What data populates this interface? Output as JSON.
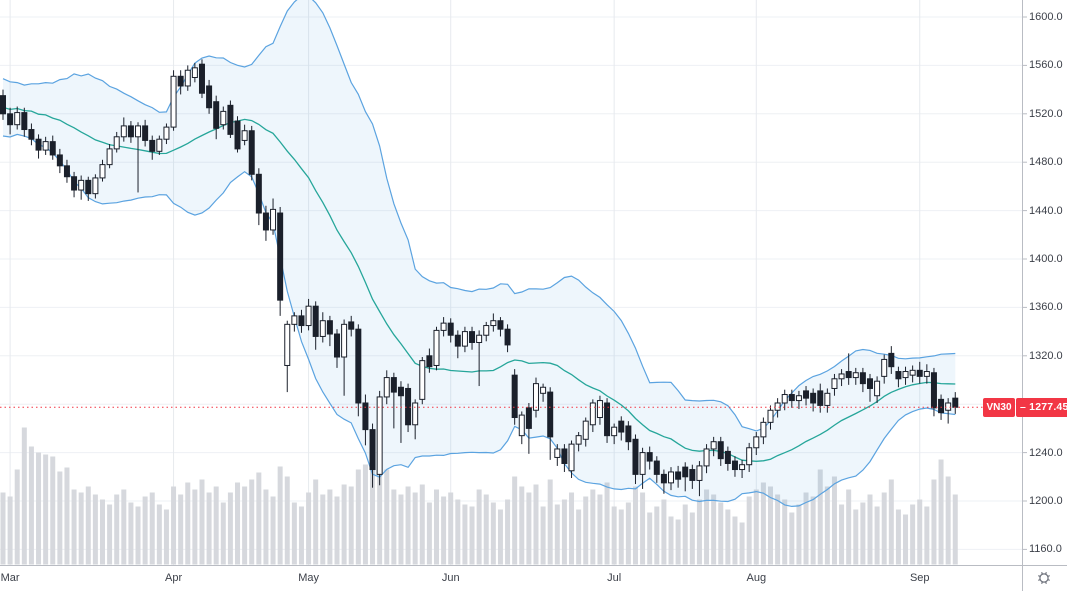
{
  "theme": {
    "background": "#ffffff",
    "grid_horizontal": "#eef0f4",
    "grid_vertical": "#e7eaee",
    "axis_border": "#b9bcc3",
    "axis_text": "#3b3f48",
    "candle_up_fill": "#ffffff",
    "candle_down_fill": "#1b202b",
    "candle_border": "#1b202b",
    "volume_bar": "#d6d8dd",
    "bollinger_band_line": "#5ba3e0",
    "bollinger_band_fill": "rgba(91,163,224,0.10)",
    "bollinger_basis_line": "#26a69a",
    "accent_red": "#f23645",
    "gear_icon_color": "#6b6f79"
  },
  "price_tag": {
    "symbol": "VN30",
    "separator": "–",
    "price": "1277.45",
    "price_text": "– 1277.45"
  },
  "price_axis": {
    "labels": [
      {
        "value": 1600,
        "label": "1600.0"
      },
      {
        "value": 1560,
        "label": "1560.0"
      },
      {
        "value": 1520,
        "label": "1520.0"
      },
      {
        "value": 1480,
        "label": "1480.0"
      },
      {
        "value": 1440,
        "label": "1440.0"
      },
      {
        "value": 1400,
        "label": "1400.0"
      },
      {
        "value": 1360,
        "label": "1360.0"
      },
      {
        "value": 1320,
        "label": "1320.0"
      },
      {
        "value": 1240,
        "label": "1240.0"
      },
      {
        "value": 1200,
        "label": "1200.0"
      },
      {
        "value": 1160,
        "label": "1160.0"
      }
    ]
  },
  "time_axis": {
    "months": [
      {
        "label": "Mar",
        "candle_index": 1
      },
      {
        "label": "Apr",
        "candle_index": 24
      },
      {
        "label": "May",
        "candle_index": 43
      },
      {
        "label": "Jun",
        "candle_index": 63
      },
      {
        "label": "Jul",
        "candle_index": 86
      },
      {
        "label": "Aug",
        "candle_index": 106
      },
      {
        "label": "Sep",
        "candle_index": 129
      }
    ]
  },
  "icons": {
    "gear": "axis-settings-gear"
  },
  "chart_data": {
    "type": "candlestick",
    "title": "VN30 daily candlesticks with Bollinger Bands (20, 2) and volume",
    "symbol": "VN30",
    "last_close": 1277.45,
    "price_axis": {
      "min": 1160,
      "max": 1600,
      "tick_step": 40,
      "grid": true
    },
    "legend_position": "none",
    "indicators": {
      "bollinger": {
        "period": 20,
        "stddev_mult": 2,
        "seed_closes": [
          1502,
          1544,
          1506,
          1542,
          1508,
          1540,
          1510,
          1538,
          1512,
          1536,
          1514,
          1536,
          1516,
          1534,
          1518,
          1532,
          1520,
          1530,
          1522,
          1528
        ]
      },
      "volume": {
        "units": "relative"
      }
    },
    "columns": [
      "open",
      "high",
      "low",
      "close",
      "volume_rel"
    ],
    "candles": [
      [
        1535,
        1540,
        1515,
        1520,
        72
      ],
      [
        1520,
        1525,
        1503,
        1511,
        68
      ],
      [
        1511,
        1526,
        1507,
        1521,
        95
      ],
      [
        1521,
        1525,
        1501,
        1507,
        137
      ],
      [
        1507,
        1512,
        1494,
        1499,
        118
      ],
      [
        1499,
        1503,
        1483,
        1490,
        112
      ],
      [
        1490,
        1501,
        1486,
        1497,
        110
      ],
      [
        1497,
        1502,
        1482,
        1486,
        108
      ],
      [
        1486,
        1491,
        1471,
        1477,
        93
      ],
      [
        1477,
        1482,
        1463,
        1468,
        97
      ],
      [
        1468,
        1472,
        1451,
        1457,
        75
      ],
      [
        1457,
        1469,
        1449,
        1465,
        72
      ],
      [
        1465,
        1468,
        1448,
        1454,
        78
      ],
      [
        1454,
        1470,
        1450,
        1467,
        70
      ],
      [
        1467,
        1482,
        1464,
        1478,
        65
      ],
      [
        1478,
        1495,
        1475,
        1491,
        60
      ],
      [
        1491,
        1505,
        1488,
        1501,
        70
      ],
      [
        1501,
        1517,
        1497,
        1510,
        75
      ],
      [
        1510,
        1514,
        1496,
        1501,
        62
      ],
      [
        1501,
        1513,
        1455,
        1510,
        58
      ],
      [
        1510,
        1515,
        1493,
        1498,
        68
      ],
      [
        1498,
        1502,
        1482,
        1489,
        72
      ],
      [
        1489,
        1502,
        1486,
        1499,
        60
      ],
      [
        1499,
        1512,
        1495,
        1509,
        55
      ],
      [
        1509,
        1556,
        1506,
        1551,
        78
      ],
      [
        1551,
        1556,
        1536,
        1543,
        70
      ],
      [
        1543,
        1560,
        1539,
        1556,
        82
      ],
      [
        1550,
        1562,
        1546,
        1558,
        75
      ],
      [
        1561,
        1565,
        1533,
        1537,
        85
      ],
      [
        1543,
        1548,
        1520,
        1525,
        72
      ],
      [
        1530,
        1535,
        1499,
        1508,
        78
      ],
      [
        1511,
        1526,
        1507,
        1522,
        62
      ],
      [
        1527,
        1531,
        1500,
        1503,
        72
      ],
      [
        1514,
        1518,
        1488,
        1491,
        82
      ],
      [
        1498,
        1511,
        1494,
        1506,
        78
      ],
      [
        1506,
        1510,
        1465,
        1470,
        85
      ],
      [
        1470,
        1475,
        1428,
        1438,
        92
      ],
      [
        1438,
        1444,
        1415,
        1424,
        75
      ],
      [
        1424,
        1450,
        1420,
        1441,
        68
      ],
      [
        1438,
        1443,
        1353,
        1366,
        98
      ],
      [
        1312,
        1349,
        1290,
        1346,
        88
      ],
      [
        1346,
        1356,
        1340,
        1353,
        62
      ],
      [
        1353,
        1358,
        1339,
        1345,
        58
      ],
      [
        1345,
        1367,
        1341,
        1361,
        72
      ],
      [
        1361,
        1365,
        1325,
        1336,
        85
      ],
      [
        1336,
        1356,
        1331,
        1349,
        70
      ],
      [
        1349,
        1353,
        1328,
        1338,
        75
      ],
      [
        1338,
        1342,
        1310,
        1319,
        68
      ],
      [
        1319,
        1350,
        1287,
        1346,
        80
      ],
      [
        1348,
        1353,
        1336,
        1342,
        78
      ],
      [
        1342,
        1346,
        1270,
        1281,
        95
      ],
      [
        1281,
        1288,
        1246,
        1259,
        100
      ],
      [
        1259,
        1264,
        1211,
        1226,
        108
      ],
      [
        1222,
        1291,
        1213,
        1286,
        112
      ],
      [
        1286,
        1308,
        1280,
        1302,
        95
      ],
      [
        1302,
        1306,
        1260,
        1290,
        75
      ],
      [
        1294,
        1299,
        1248,
        1287,
        70
      ],
      [
        1293,
        1297,
        1257,
        1263,
        78
      ],
      [
        1263,
        1284,
        1251,
        1281,
        72
      ],
      [
        1284,
        1319,
        1280,
        1316,
        80
      ],
      [
        1320,
        1326,
        1306,
        1311,
        62
      ],
      [
        1312,
        1344,
        1308,
        1341,
        75
      ],
      [
        1341,
        1352,
        1336,
        1347,
        68
      ],
      [
        1347,
        1351,
        1331,
        1337,
        72
      ],
      [
        1337,
        1341,
        1318,
        1328,
        65
      ],
      [
        1328,
        1344,
        1323,
        1340,
        60
      ],
      [
        1340,
        1344,
        1325,
        1331,
        58
      ],
      [
        1331,
        1341,
        1295,
        1337,
        75
      ],
      [
        1337,
        1348,
        1332,
        1345,
        70
      ],
      [
        1345,
        1355,
        1340,
        1349,
        62
      ],
      [
        1349,
        1352,
        1336,
        1342,
        55
      ],
      [
        1342,
        1346,
        1323,
        1329,
        65
      ],
      [
        1304,
        1309,
        1263,
        1269,
        88
      ],
      [
        1254,
        1274,
        1247,
        1271,
        78
      ],
      [
        1277,
        1281,
        1239,
        1260,
        72
      ],
      [
        1275,
        1302,
        1269,
        1297,
        80
      ],
      [
        1289,
        1297,
        1282,
        1294,
        58
      ],
      [
        1290,
        1294,
        1234,
        1253,
        85
      ],
      [
        1236,
        1247,
        1229,
        1243,
        60
      ],
      [
        1243,
        1247,
        1224,
        1231,
        65
      ],
      [
        1225,
        1250,
        1219,
        1247,
        72
      ],
      [
        1247,
        1257,
        1241,
        1254,
        55
      ],
      [
        1251,
        1269,
        1245,
        1266,
        68
      ],
      [
        1263,
        1284,
        1257,
        1281,
        75
      ],
      [
        1269,
        1287,
        1263,
        1283,
        70
      ],
      [
        1281,
        1285,
        1248,
        1254,
        82
      ],
      [
        1254,
        1264,
        1247,
        1261,
        58
      ],
      [
        1266,
        1270,
        1250,
        1257,
        55
      ],
      [
        1262,
        1266,
        1242,
        1249,
        62
      ],
      [
        1251,
        1255,
        1214,
        1222,
        78
      ],
      [
        1222,
        1244,
        1210,
        1240,
        72
      ],
      [
        1240,
        1245,
        1226,
        1233,
        52
      ],
      [
        1233,
        1237,
        1215,
        1222,
        58
      ],
      [
        1222,
        1226,
        1206,
        1215,
        65
      ],
      [
        1215,
        1228,
        1209,
        1224,
        48
      ],
      [
        1224,
        1229,
        1211,
        1218,
        45
      ],
      [
        1228,
        1232,
        1208,
        1220,
        60
      ],
      [
        1226,
        1230,
        1210,
        1217,
        52
      ],
      [
        1217,
        1233,
        1204,
        1229,
        65
      ],
      [
        1229,
        1247,
        1223,
        1243,
        75
      ],
      [
        1243,
        1253,
        1237,
        1249,
        70
      ],
      [
        1249,
        1253,
        1229,
        1235,
        62
      ],
      [
        1241,
        1245,
        1225,
        1231,
        55
      ],
      [
        1233,
        1237,
        1220,
        1226,
        48
      ],
      [
        1226,
        1234,
        1219,
        1230,
        42
      ],
      [
        1230,
        1248,
        1224,
        1244,
        68
      ],
      [
        1244,
        1257,
        1238,
        1253,
        75
      ],
      [
        1253,
        1269,
        1247,
        1265,
        82
      ],
      [
        1265,
        1279,
        1259,
        1275,
        78
      ],
      [
        1275,
        1285,
        1269,
        1281,
        70
      ],
      [
        1281,
        1292,
        1275,
        1288,
        65
      ],
      [
        1288,
        1292,
        1277,
        1283,
        52
      ],
      [
        1283,
        1291,
        1276,
        1287,
        60
      ],
      [
        1291,
        1295,
        1279,
        1285,
        72
      ],
      [
        1289,
        1293,
        1274,
        1281,
        68
      ],
      [
        1291,
        1297,
        1273,
        1279,
        95
      ],
      [
        1279,
        1293,
        1273,
        1289,
        78
      ],
      [
        1293,
        1305,
        1287,
        1301,
        88
      ],
      [
        1301,
        1309,
        1295,
        1305,
        60
      ],
      [
        1307,
        1322,
        1296,
        1302,
        75
      ],
      [
        1302,
        1310,
        1296,
        1306,
        55
      ],
      [
        1306,
        1310,
        1290,
        1297,
        62
      ],
      [
        1301,
        1305,
        1282,
        1293,
        70
      ],
      [
        1287,
        1303,
        1281,
        1299,
        58
      ],
      [
        1303,
        1321,
        1297,
        1317,
        72
      ],
      [
        1322,
        1328,
        1305,
        1311,
        85
      ],
      [
        1307,
        1311,
        1294,
        1301,
        55
      ],
      [
        1302,
        1311,
        1296,
        1307,
        50
      ],
      [
        1304,
        1312,
        1298,
        1308,
        60
      ],
      [
        1308,
        1315,
        1297,
        1303,
        65
      ],
      [
        1303,
        1313,
        1297,
        1307,
        58
      ],
      [
        1306,
        1310,
        1270,
        1277,
        85
      ],
      [
        1284,
        1288,
        1267,
        1273,
        105
      ],
      [
        1275,
        1285,
        1264,
        1281,
        88
      ],
      [
        1285,
        1290,
        1272,
        1277.45,
        70
      ]
    ]
  }
}
